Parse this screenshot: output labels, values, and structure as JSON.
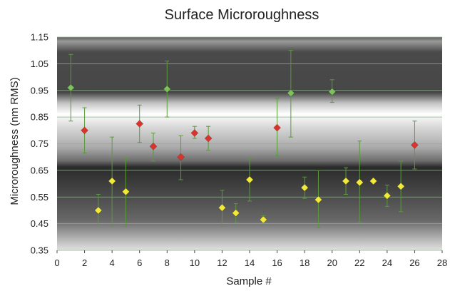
{
  "chart_data": {
    "type": "scatter",
    "title": "Surface Microroughness",
    "xlabel": "Sample #",
    "ylabel": "Microroughness (nm RMS)",
    "xlim": [
      0,
      28
    ],
    "ylim": [
      0.35,
      1.15
    ],
    "xticks": [
      "0",
      "2",
      "4",
      "6",
      "8",
      "10",
      "12",
      "14",
      "16",
      "18",
      "20",
      "22",
      "24",
      "26",
      "28"
    ],
    "yticks": [
      "0.35",
      "0.45",
      "0.55",
      "0.65",
      "0.75",
      "0.85",
      "0.95",
      "1.05",
      "1.15"
    ],
    "grid": true,
    "colors": {
      "green": "#7dc25a",
      "red": "#d9342b",
      "yellow": "#f2ea3a",
      "errorbar": "#5a9a3a",
      "grid": "#8fb08f"
    },
    "points": [
      {
        "x": 1,
        "y": 0.96,
        "low": 0.835,
        "high": 1.085,
        "color": "green"
      },
      {
        "x": 2,
        "y": 0.8,
        "low": 0.715,
        "high": 0.885,
        "color": "red"
      },
      {
        "x": 3,
        "y": 0.5,
        "low": 0.445,
        "high": 0.56,
        "color": "yellow"
      },
      {
        "x": 4,
        "y": 0.61,
        "low": 0.44,
        "high": 0.775,
        "color": "yellow"
      },
      {
        "x": 5,
        "y": 0.57,
        "low": 0.44,
        "high": 0.695,
        "color": "yellow"
      },
      {
        "x": 6,
        "y": 0.825,
        "low": 0.755,
        "high": 0.895,
        "color": "red"
      },
      {
        "x": 7,
        "y": 0.74,
        "low": 0.685,
        "high": 0.79,
        "color": "red"
      },
      {
        "x": 8,
        "y": 0.955,
        "low": 0.85,
        "high": 1.06,
        "color": "green"
      },
      {
        "x": 9,
        "y": 0.7,
        "low": 0.615,
        "high": 0.78,
        "color": "red"
      },
      {
        "x": 10,
        "y": 0.79,
        "low": 0.77,
        "high": 0.815,
        "color": "red"
      },
      {
        "x": 11,
        "y": 0.77,
        "low": 0.725,
        "high": 0.815,
        "color": "red"
      },
      {
        "x": 12,
        "y": 0.51,
        "low": 0.44,
        "high": 0.575,
        "color": "yellow"
      },
      {
        "x": 13,
        "y": 0.49,
        "low": 0.455,
        "high": 0.525,
        "color": "yellow"
      },
      {
        "x": 14,
        "y": 0.615,
        "low": 0.535,
        "high": 0.695,
        "color": "yellow"
      },
      {
        "x": 15,
        "y": 0.465,
        "low": 0.455,
        "high": 0.48,
        "color": "yellow"
      },
      {
        "x": 16,
        "y": 0.81,
        "low": 0.705,
        "high": 0.92,
        "color": "red"
      },
      {
        "x": 17,
        "y": 0.94,
        "low": 0.775,
        "high": 1.1,
        "color": "green"
      },
      {
        "x": 18,
        "y": 0.585,
        "low": 0.545,
        "high": 0.625,
        "color": "yellow"
      },
      {
        "x": 19,
        "y": 0.54,
        "low": 0.435,
        "high": 0.65,
        "color": "yellow"
      },
      {
        "x": 20,
        "y": 0.945,
        "low": 0.905,
        "high": 0.99,
        "color": "green"
      },
      {
        "x": 21,
        "y": 0.61,
        "low": 0.56,
        "high": 0.66,
        "color": "yellow"
      },
      {
        "x": 22,
        "y": 0.605,
        "low": 0.455,
        "high": 0.76,
        "color": "yellow"
      },
      {
        "x": 23,
        "y": 0.61,
        "low": 0.61,
        "high": 0.61,
        "color": "yellow"
      },
      {
        "x": 24,
        "y": 0.555,
        "low": 0.515,
        "high": 0.595,
        "color": "yellow"
      },
      {
        "x": 25,
        "y": 0.59,
        "low": 0.495,
        "high": 0.685,
        "color": "yellow"
      },
      {
        "x": 26,
        "y": 0.745,
        "low": 0.655,
        "high": 0.835,
        "color": "red"
      }
    ]
  }
}
